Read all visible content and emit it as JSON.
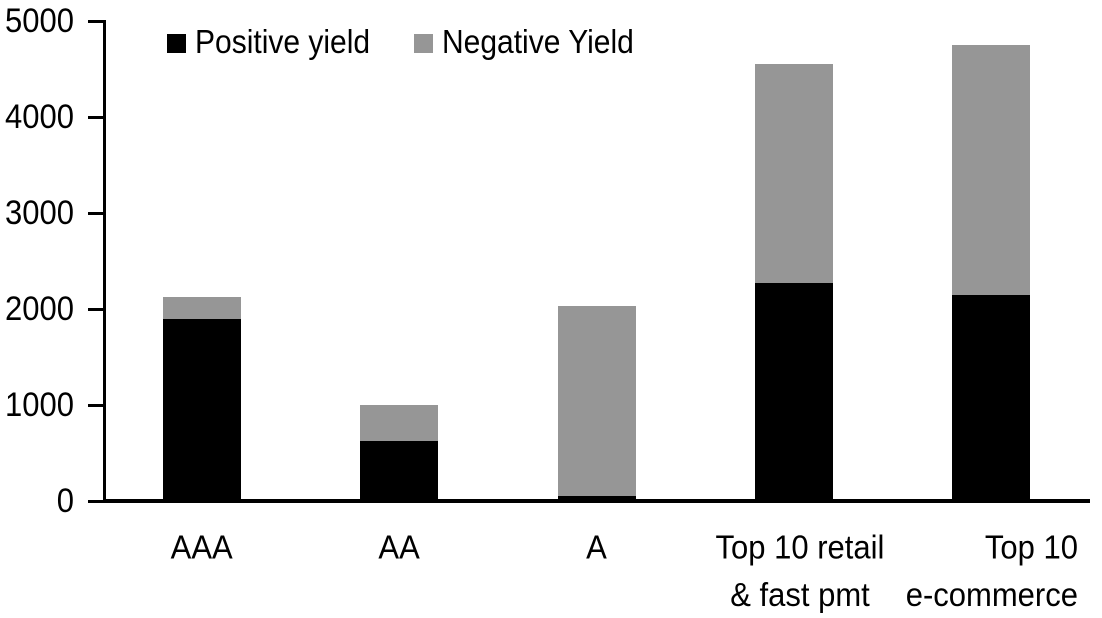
{
  "chart": {
    "background": "#ffffff",
    "axis_color": "#000000",
    "legend": [
      {
        "label": "Positive yield",
        "color": "#000000"
      },
      {
        "label": "Negative Yield",
        "color": "#969696"
      }
    ]
  },
  "chart_data": {
    "type": "bar",
    "stacked": true,
    "title": "",
    "xlabel": "",
    "ylabel": "",
    "categories": [
      "AAA",
      "AA",
      "A",
      "Top 10 retail & fast pmt",
      "Top 10 e-commerce"
    ],
    "category_lines": [
      [
        "AAA"
      ],
      [
        "AA"
      ],
      [
        "A"
      ],
      [
        "Top 10 retail",
        "& fast pmt"
      ],
      [
        "Top 10",
        "e-commerce"
      ]
    ],
    "series": [
      {
        "name": "Positive yield",
        "color": "#000000",
        "values": [
          1900,
          620,
          50,
          2270,
          2150
        ]
      },
      {
        "name": "Negative Yield",
        "color": "#969696",
        "values": [
          220,
          380,
          1980,
          2280,
          2600
        ]
      }
    ],
    "totals": [
      2120,
      1000,
      2030,
      4550,
      4750
    ],
    "ylim": [
      0,
      5000
    ],
    "yticks": [
      0,
      1000,
      2000,
      3000,
      4000,
      5000
    ],
    "grid": false,
    "legend_position": "top-left"
  }
}
